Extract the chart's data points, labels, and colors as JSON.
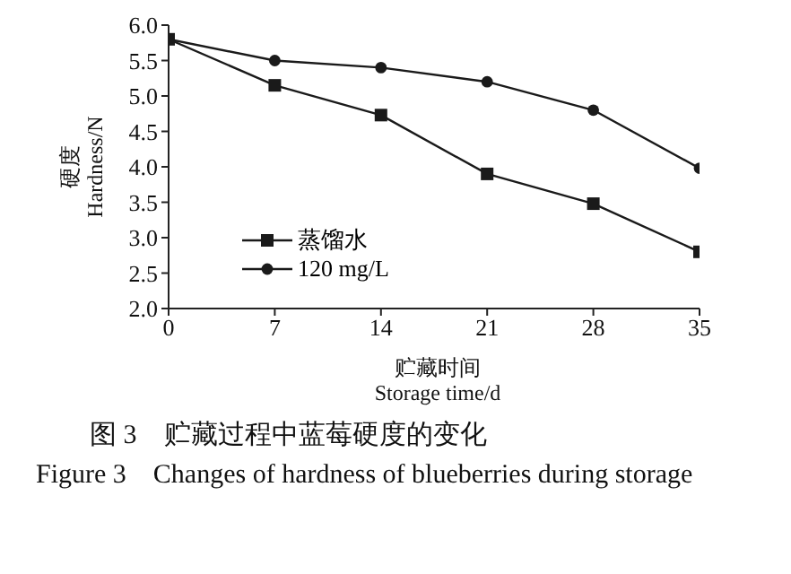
{
  "chart_data": {
    "type": "line",
    "xlabel": "贮藏时间\nStorage time/d",
    "ylabel": "硬度\nHardness/N",
    "x": [
      0,
      7,
      14,
      21,
      28,
      35
    ],
    "series": [
      {
        "name": "蒸馏水",
        "color": "#1a1a1a",
        "marker": "square",
        "values": [
          5.8,
          5.15,
          4.73,
          3.9,
          3.48,
          2.8
        ]
      },
      {
        "name": "120 mg/L",
        "color": "#1a1a1a",
        "marker": "circle",
        "values": [
          5.8,
          5.5,
          5.4,
          5.2,
          4.8,
          3.98
        ]
      }
    ],
    "xlim": [
      0,
      35
    ],
    "xticks": [
      0,
      7,
      14,
      21,
      28,
      35
    ],
    "ylim": [
      2,
      6
    ],
    "yticks": [
      {
        "value": 2,
        "label": "2.0"
      },
      {
        "value": 2.5,
        "label": "2.5"
      },
      {
        "value": 3,
        "label": "3.0"
      },
      {
        "value": 3.5,
        "label": "3.5"
      },
      {
        "value": 4,
        "label": "4.0"
      },
      {
        "value": 4.5,
        "label": "4.5"
      },
      {
        "value": 5,
        "label": "5.0"
      },
      {
        "value": 5.5,
        "label": "5.5"
      },
      {
        "value": 6,
        "label": "6.0"
      }
    ],
    "grid": false,
    "legend": "bottom left",
    "line_style": "solid",
    "annotations": [
      "图 3　贮藏过程中蓝莓硬度的变化",
      "Figure 3　Changes of hardness of blueberries during storage"
    ]
  }
}
